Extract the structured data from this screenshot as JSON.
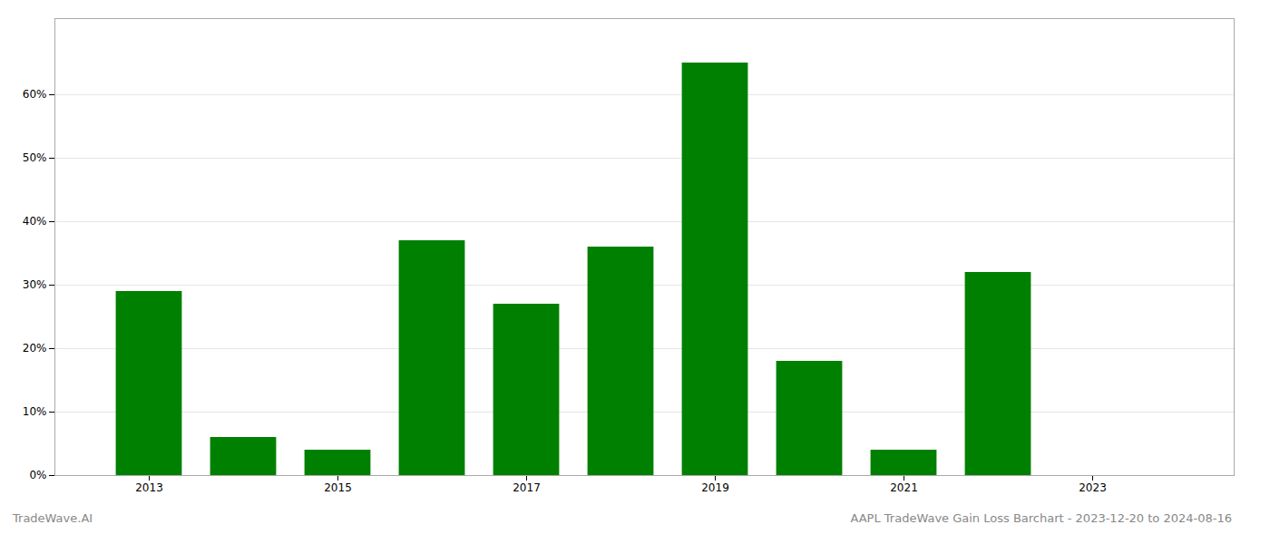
{
  "chart_data": {
    "type": "bar",
    "title": "AAPL TradeWave Gain Loss Barchart - 2023-12-20 to 2024-08-16",
    "annotations": [
      "TradeWave.AI"
    ],
    "x": [
      2013,
      2014,
      2015,
      2016,
      2017,
      2018,
      2019,
      2020,
      2021,
      2022,
      2023
    ],
    "values": [
      0.29,
      0.06,
      0.04,
      0.37,
      0.27,
      0.36,
      0.65,
      0.18,
      0.04,
      0.32,
      0.0
    ],
    "color": "#008000",
    "xlim": [
      2012.0,
      2024.5
    ],
    "xticks": [
      2013,
      2015,
      2017,
      2019,
      2021,
      2023
    ],
    "ylim": [
      0,
      0.72
    ],
    "yticks": [
      {
        "value": 0.0,
        "label": "0%"
      },
      {
        "value": 0.1,
        "label": "10%"
      },
      {
        "value": 0.2,
        "label": "20%"
      },
      {
        "value": 0.3,
        "label": "30%"
      },
      {
        "value": 0.4,
        "label": "40%"
      },
      {
        "value": 0.5,
        "label": "50%"
      },
      {
        "value": 0.6,
        "label": "60%"
      }
    ],
    "grid": true
  }
}
